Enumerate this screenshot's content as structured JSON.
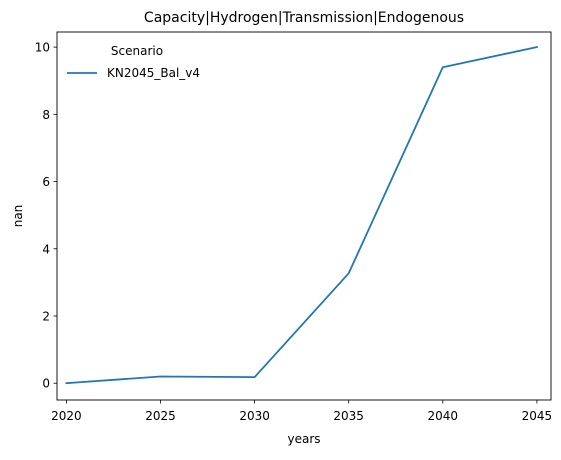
{
  "chart_data": {
    "type": "line",
    "title": "Capacity|Hydrogen|Transmission|Endogenous",
    "xlabel": "years",
    "ylabel": "nan",
    "x": [
      2020,
      2025,
      2030,
      2035,
      2040,
      2045
    ],
    "xlim": [
      2019.5,
      2045.75
    ],
    "ylim": [
      -0.5,
      10.45
    ],
    "xticks": [
      2020,
      2025,
      2030,
      2035,
      2040,
      2045
    ],
    "yticks": [
      0,
      2,
      4,
      6,
      8,
      10
    ],
    "grid": false,
    "legend": {
      "title": "Scenario",
      "placement": "upper-left"
    },
    "series": [
      {
        "name": "KN2045_Bal_v4",
        "color": "#1f77b4",
        "values": [
          0.0,
          0.2,
          0.18,
          3.27,
          9.4,
          10.0
        ]
      }
    ]
  }
}
